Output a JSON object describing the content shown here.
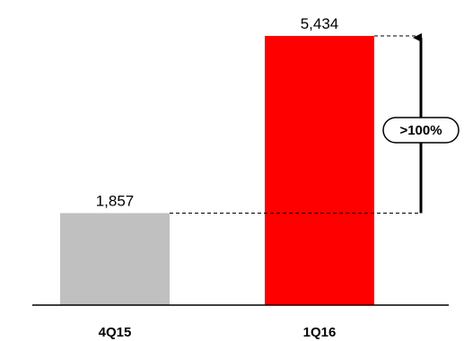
{
  "chart_data": {
    "type": "bar",
    "categories": [
      "4Q15",
      "1Q16"
    ],
    "values": [
      1857,
      5434
    ],
    "data_labels": [
      "1,857",
      "5,434"
    ],
    "colors": [
      "#c0c0c0",
      "#ff0000"
    ],
    "title": "",
    "xlabel": "",
    "ylabel": "",
    "ylim": [
      0,
      5434
    ],
    "grid": false,
    "legend": "none",
    "annotation": {
      "label": ">100%",
      "from_category": "4Q15",
      "to_category": "1Q16",
      "arrow": "up",
      "guide_lines": "dashed"
    }
  }
}
